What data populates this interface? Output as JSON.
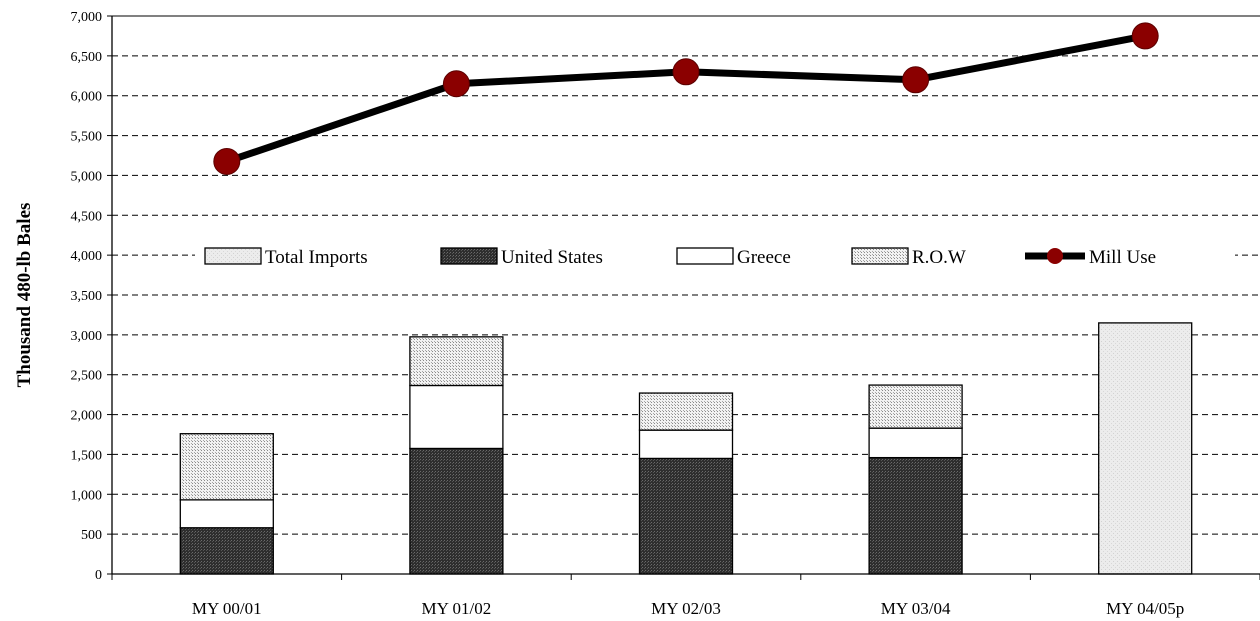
{
  "chart_data": {
    "type": "bar",
    "stacked": true,
    "title": "",
    "xlabel": "",
    "ylabel": "Thousand 480-lb Bales",
    "ylim": [
      0,
      7000
    ],
    "yticks": [
      0,
      500,
      1000,
      1500,
      2000,
      2500,
      3000,
      3500,
      4000,
      4500,
      5000,
      5500,
      6000,
      6500,
      7000
    ],
    "ytick_labels": [
      "0",
      "500",
      "1,000",
      "1,500",
      "2,000",
      "2,500",
      "3,000",
      "3,500",
      "4,000",
      "4,500",
      "5,000",
      "5,500",
      "6,000",
      "6,500",
      "7,000"
    ],
    "grid": "horizontal-dashed",
    "legend_position": "center",
    "categories": [
      "MY 00/01",
      "MY 01/02",
      "MY 02/03",
      "MY 03/04",
      "MY 04/05p"
    ],
    "series": [
      {
        "name": "Total Imports",
        "kind": "bar",
        "pattern": "light-dots",
        "color": "#e8e8e8",
        "values": [
          null,
          null,
          null,
          null,
          3150
        ]
      },
      {
        "name": "United States",
        "kind": "bar",
        "pattern": "dark-dots",
        "color": "#333333",
        "values": [
          580,
          1575,
          1450,
          1460,
          null
        ]
      },
      {
        "name": "Greece",
        "kind": "bar",
        "pattern": "solid",
        "color": "#ffffff",
        "values": [
          350,
          790,
          355,
          370,
          null
        ]
      },
      {
        "name": "R.O.W",
        "kind": "bar",
        "pattern": "light-grid",
        "color": "#dcdcdc",
        "values": [
          830,
          610,
          465,
          540,
          null
        ]
      },
      {
        "name": "Mill Use",
        "kind": "line",
        "color": "#000000",
        "marker_color": "#8b0000",
        "values": [
          5175,
          6150,
          6300,
          6200,
          6750
        ]
      }
    ]
  }
}
